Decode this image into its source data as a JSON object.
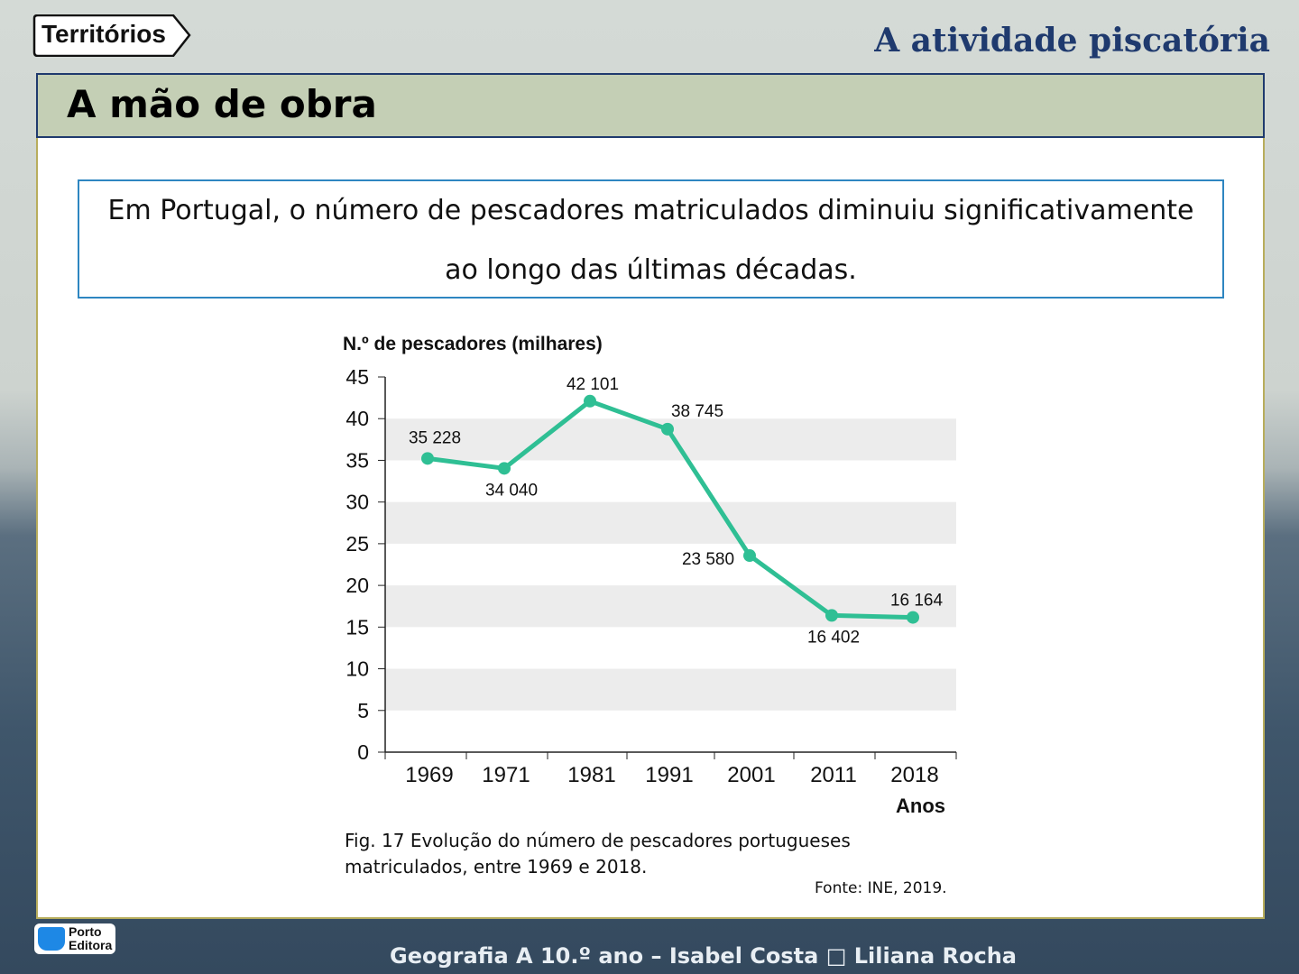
{
  "logo": {
    "text": "Territórios"
  },
  "topic": "A atividade piscatória",
  "header": {
    "title": "A mão de obra"
  },
  "intro": "Em Portugal, o número de pescadores matriculados diminuiu significativamente ao longo das últimas décadas.",
  "chart_data": {
    "type": "line",
    "ylabel": "N.º de pescadores (milhares)",
    "xlabel": "Anos",
    "categories": [
      "1969",
      "1971",
      "1981",
      "1991",
      "2001",
      "2011",
      "2018"
    ],
    "values": [
      35.228,
      34.04,
      42.101,
      38.745,
      23.58,
      16.402,
      16.164
    ],
    "data_labels": [
      "35 228",
      "34 040",
      "42 101",
      "38 745",
      "23 580",
      "16 402",
      "16 164"
    ],
    "yticks": [
      0,
      5,
      10,
      15,
      20,
      25,
      30,
      35,
      40,
      45
    ],
    "ylim": [
      0,
      45
    ],
    "color": "#2fbf94",
    "grid": "alternating bands"
  },
  "caption": "Fig. 17  Evolução do número de pescadores portugueses matriculados, entre 1969 e 2018.",
  "source": "Fonte: INE, 2019.",
  "publisher": {
    "line1": "Porto",
    "line2": "Editora"
  },
  "footer": "Geografia A 10.º ano – Isabel Costa □ Liliana Rocha"
}
